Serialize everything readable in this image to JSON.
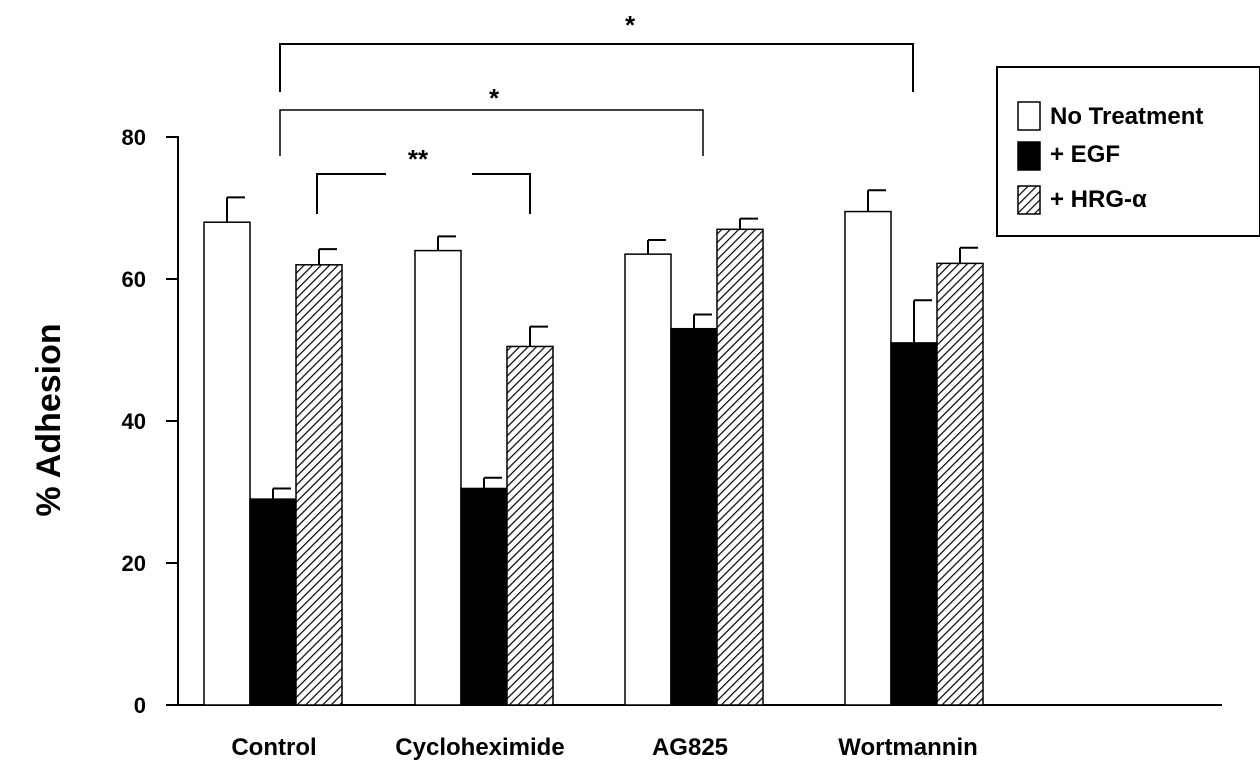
{
  "chart_data": {
    "type": "bar",
    "ylabel": "% Adhesion",
    "ylim": [
      0,
      80
    ],
    "yticks": [
      0,
      20,
      40,
      60,
      80
    ],
    "categories": [
      "Control",
      "Cycloheximide",
      "AG825",
      "Wortmannin"
    ],
    "series": [
      {
        "name": "No Treatment",
        "fill": "white",
        "values": [
          68,
          64,
          63.5,
          69.5
        ],
        "errors": [
          3.5,
          2,
          2,
          3
        ]
      },
      {
        "name": "+ EGF",
        "fill": "black",
        "values": [
          29,
          30.5,
          53,
          51
        ],
        "errors": [
          1.5,
          1.5,
          2,
          6
        ]
      },
      {
        "name": "+ HRG-α",
        "fill": "hatched",
        "values": [
          62,
          50.5,
          67,
          62.2
        ],
        "errors": [
          2.2,
          2.8,
          1.5,
          2.2
        ]
      }
    ],
    "legend_position": "top-right",
    "annotations": [
      "*",
      "*",
      "**"
    ]
  }
}
